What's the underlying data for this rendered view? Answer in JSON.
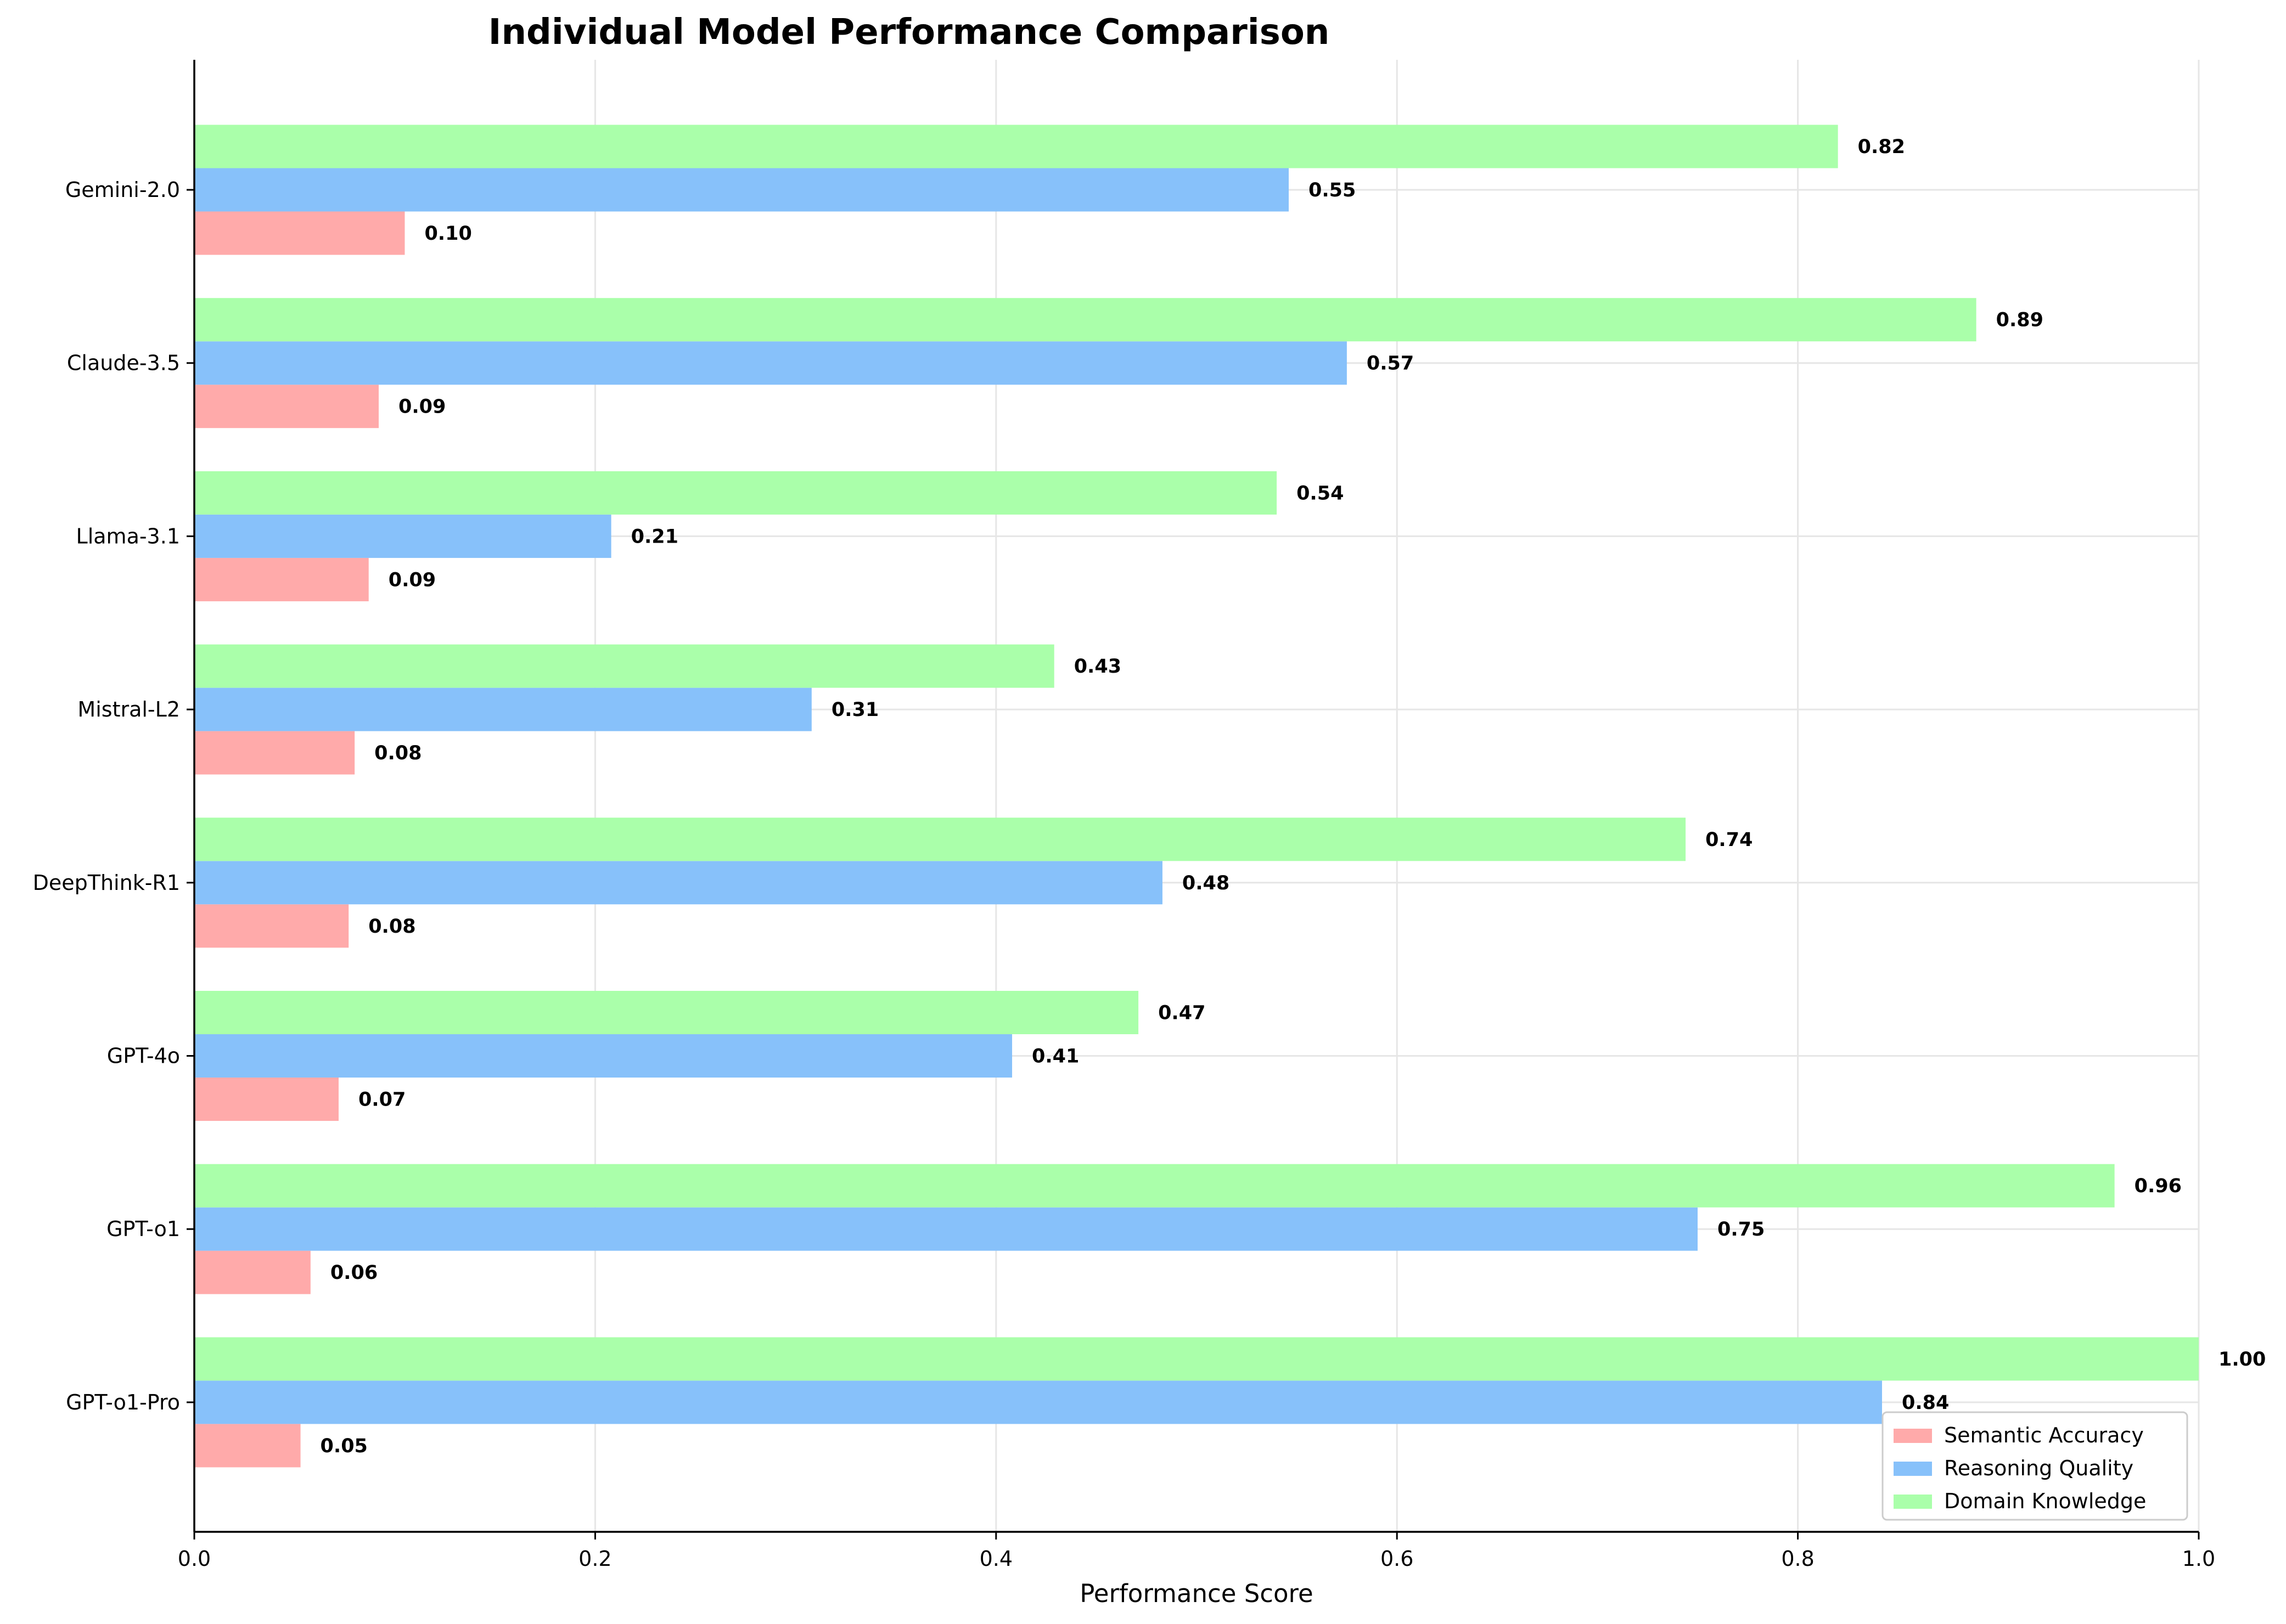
{
  "chart_data": {
    "type": "bar",
    "orientation": "horizontal",
    "title": "Individual Model Performance Comparison",
    "xlabel": "Performance Score",
    "ylabel": "",
    "xlim": [
      0,
      1.0
    ],
    "xticks": [
      0.0,
      0.2,
      0.4,
      0.6,
      0.8,
      1.0
    ],
    "xtick_labels": [
      "0.0",
      "0.2",
      "0.4",
      "0.6",
      "0.8",
      "1.0"
    ],
    "grid": true,
    "legend_position": "bottom-right",
    "categories": [
      "Gemini-2.0",
      "Claude-3.5",
      "Llama-3.1",
      "Mistral-L2",
      "DeepThink-R1",
      "GPT-4o",
      "GPT-o1",
      "GPT-o1-Pro"
    ],
    "series": [
      {
        "name": "Semantic Accuracy",
        "color": "#ffaaaa",
        "values": [
          0.105,
          0.092,
          0.087,
          0.08,
          0.077,
          0.072,
          0.058,
          0.053
        ],
        "value_labels": [
          "0.10",
          "0.09",
          "0.09",
          "0.08",
          "0.08",
          "0.07",
          "0.06",
          "0.05"
        ]
      },
      {
        "name": "Reasoning Quality",
        "color": "#87c1fa",
        "values": [
          0.546,
          0.575,
          0.208,
          0.308,
          0.483,
          0.408,
          0.75,
          0.842
        ],
        "value_labels": [
          "0.55",
          "0.57",
          "0.21",
          "0.31",
          "0.48",
          "0.41",
          "0.75",
          "0.84"
        ]
      },
      {
        "name": "Domain Knowledge",
        "color": "#aaffaa",
        "values": [
          0.82,
          0.889,
          0.54,
          0.429,
          0.744,
          0.471,
          0.958,
          1.0
        ],
        "value_labels": [
          "0.82",
          "0.89",
          "0.54",
          "0.43",
          "0.74",
          "0.47",
          "0.96",
          "1.00"
        ]
      }
    ]
  }
}
